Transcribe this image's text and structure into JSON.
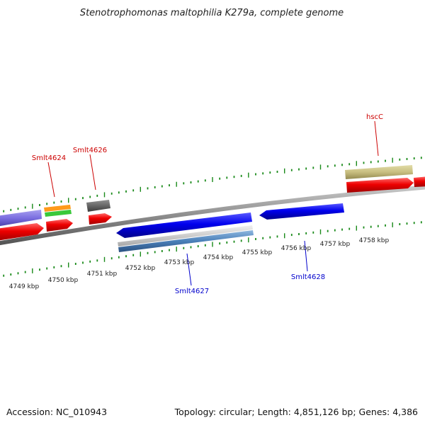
{
  "title": "Stenotrophomonas maltophilia K279a, complete genome",
  "scale_labels": [
    "4749 kbp",
    "4750 kbp",
    "4751 kbp",
    "4752 kbp",
    "4753 kbp",
    "4754 kbp",
    "4755 kbp",
    "4756 kbp",
    "4757 kbp",
    "4758 kbp"
  ],
  "gene_labels": {
    "top": [
      "Smlt4624",
      "Smlt4626",
      "hscC"
    ],
    "bottom": [
      "Smlt4627",
      "Smlt4628"
    ]
  },
  "colors": {
    "top_label": "#cc0000",
    "bottom_label": "#0000cc",
    "tick": "#1a8a1a",
    "forward_cds": "#e60000",
    "reverse_cds": "#0000ee",
    "backbone": "#8a8a8a"
  },
  "footer": {
    "accession": "Accession: NC_010943",
    "topology": "Topology: circular; Length: 4,851,126 bp; Genes: 4,386"
  }
}
